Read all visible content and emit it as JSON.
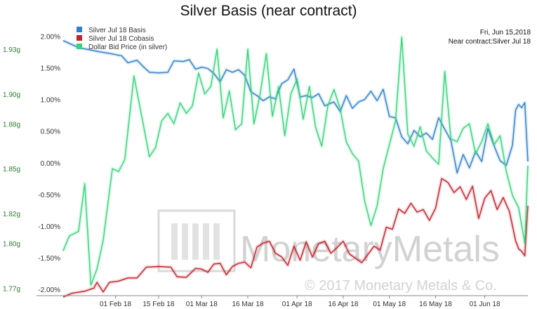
{
  "chart_data": {
    "type": "line",
    "title": "Silver Basis (near contract)",
    "info_lines": [
      "Fri, Jun 15,2018",
      "Near contract:Silver Jul 18"
    ],
    "watermark": {
      "brand": "MonetaryMetals",
      "copyright": "© 2017 Monetary Metals & Co."
    },
    "x_tick_labels": [
      "01 Feb 18",
      "15 Feb 18",
      "01 Mar 18",
      "16 Mar 18",
      "01 Apr 18",
      "16 Apr 18",
      "01 May 18",
      "16 May 18",
      "01 Jun 18"
    ],
    "x_range": [
      "2018-01-15",
      "2018-06-15"
    ],
    "y_left": {
      "tick_labels": [
        "1.77g",
        "1.80g",
        "1.82g",
        "1.85g",
        "1.88g",
        "1.90g",
        "1.93g"
      ],
      "range": [
        1.765,
        1.945
      ],
      "color": "#2e7d32"
    },
    "y_right": {
      "tick_labels": [
        "-2.00%",
        "-1.50%",
        "-1.00%",
        "-0.50%",
        "0.00%",
        "0.50%",
        "1.00%",
        "1.50%",
        "2.00%"
      ],
      "range": [
        -2.1,
        2.15
      ]
    },
    "grid": false,
    "legend_position": "top-left",
    "series": [
      {
        "name": "Silver Jul 18 Basis",
        "color": "#2f7fc9",
        "axis": "right",
        "points": [
          [
            "2018-01-15",
            1.93
          ],
          [
            "2018-01-20",
            1.82
          ],
          [
            "2018-01-26",
            1.76
          ],
          [
            "2018-01-31",
            1.72
          ],
          [
            "2018-02-03",
            1.69
          ],
          [
            "2018-02-05",
            1.58
          ],
          [
            "2018-02-08",
            1.62
          ],
          [
            "2018-02-10",
            1.52
          ],
          [
            "2018-02-12",
            1.43
          ],
          [
            "2018-02-15",
            1.42
          ],
          [
            "2018-02-18",
            1.43
          ],
          [
            "2018-02-20",
            1.61
          ],
          [
            "2018-02-23",
            1.6
          ],
          [
            "2018-02-25",
            1.63
          ],
          [
            "2018-02-27",
            1.48
          ],
          [
            "2018-03-01",
            1.51
          ],
          [
            "2018-03-03",
            1.49
          ],
          [
            "2018-03-05",
            1.41
          ],
          [
            "2018-03-07",
            1.28
          ],
          [
            "2018-03-09",
            1.47
          ],
          [
            "2018-03-11",
            1.43
          ],
          [
            "2018-03-13",
            1.47
          ],
          [
            "2018-03-15",
            1.38
          ],
          [
            "2018-03-17",
            1.12
          ],
          [
            "2018-03-19",
            1.06
          ],
          [
            "2018-03-21",
            0.98
          ],
          [
            "2018-03-23",
            1.04
          ],
          [
            "2018-03-25",
            1.01
          ],
          [
            "2018-03-27",
            1.25
          ],
          [
            "2018-03-29",
            1.31
          ],
          [
            "2018-03-31",
            1.48
          ],
          [
            "2018-04-02",
            1.04
          ],
          [
            "2018-04-04",
            1.06
          ],
          [
            "2018-04-06",
            1.03
          ],
          [
            "2018-04-08",
            1.09
          ],
          [
            "2018-04-10",
            0.9
          ],
          [
            "2018-04-13",
            0.96
          ],
          [
            "2018-04-15",
            0.81
          ],
          [
            "2018-04-17",
            1.06
          ],
          [
            "2018-04-19",
            0.86
          ],
          [
            "2018-04-21",
            0.96
          ],
          [
            "2018-04-23",
            1.0
          ],
          [
            "2018-04-25",
            1.13
          ],
          [
            "2018-04-27",
            0.98
          ],
          [
            "2018-04-29",
            1.16
          ],
          [
            "2018-05-01",
            0.73
          ],
          [
            "2018-05-03",
            0.71
          ],
          [
            "2018-05-05",
            0.41
          ],
          [
            "2018-05-07",
            0.3
          ],
          [
            "2018-05-09",
            0.51
          ],
          [
            "2018-05-11",
            0.41
          ],
          [
            "2018-05-13",
            0.47
          ],
          [
            "2018-05-15",
            0.37
          ],
          [
            "2018-05-17",
            0.71
          ],
          [
            "2018-05-19",
            0.53
          ],
          [
            "2018-05-21",
            0.35
          ],
          [
            "2018-05-23",
            -0.16
          ],
          [
            "2018-05-25",
            0.13
          ],
          [
            "2018-05-27",
            -0.08
          ],
          [
            "2018-05-29",
            0.18
          ],
          [
            "2018-05-31",
            0.02
          ],
          [
            "2018-06-02",
            0.54
          ],
          [
            "2018-06-04",
            0.27
          ],
          [
            "2018-06-06",
            0.03
          ],
          [
            "2018-06-08",
            -0.04
          ],
          [
            "2018-06-10",
            0.28
          ],
          [
            "2018-06-11",
            0.83
          ],
          [
            "2018-06-12",
            0.92
          ],
          [
            "2018-06-13",
            0.87
          ],
          [
            "2018-06-14",
            0.95
          ],
          [
            "2018-06-15",
            0.02
          ]
        ]
      },
      {
        "name": "Silver Jul 18 Cobasis",
        "color": "#c0232b",
        "axis": "right",
        "points": [
          [
            "2018-01-15",
            -2.12
          ],
          [
            "2018-01-18",
            -2.06
          ],
          [
            "2018-01-22",
            -2.03
          ],
          [
            "2018-01-25",
            -1.98
          ],
          [
            "2018-01-26",
            -1.89
          ],
          [
            "2018-01-28",
            -2.04
          ],
          [
            "2018-01-30",
            -1.89
          ],
          [
            "2018-02-02",
            -1.87
          ],
          [
            "2018-02-05",
            -1.82
          ],
          [
            "2018-02-08",
            -1.82
          ],
          [
            "2018-02-11",
            -1.65
          ],
          [
            "2018-02-15",
            -1.64
          ],
          [
            "2018-02-19",
            -1.65
          ],
          [
            "2018-02-21",
            -1.8
          ],
          [
            "2018-02-24",
            -1.81
          ],
          [
            "2018-02-27",
            -1.67
          ],
          [
            "2018-03-01",
            -1.68
          ],
          [
            "2018-03-03",
            -1.73
          ],
          [
            "2018-03-05",
            -1.6
          ],
          [
            "2018-03-07",
            -1.59
          ],
          [
            "2018-03-09",
            -1.77
          ],
          [
            "2018-03-11",
            -1.64
          ],
          [
            "2018-03-13",
            -1.59
          ],
          [
            "2018-03-15",
            -1.57
          ],
          [
            "2018-03-17",
            -1.66
          ],
          [
            "2018-03-19",
            -1.33
          ],
          [
            "2018-03-21",
            -1.27
          ],
          [
            "2018-03-23",
            -1.24
          ],
          [
            "2018-03-25",
            -1.43
          ],
          [
            "2018-03-27",
            -1.49
          ],
          [
            "2018-03-29",
            -1.62
          ],
          [
            "2018-03-31",
            -1.32
          ],
          [
            "2018-04-02",
            -1.54
          ],
          [
            "2018-04-04",
            -1.25
          ],
          [
            "2018-04-06",
            -1.49
          ],
          [
            "2018-04-08",
            -1.28
          ],
          [
            "2018-04-10",
            -1.24
          ],
          [
            "2018-04-12",
            -1.43
          ],
          [
            "2018-04-14",
            -1.34
          ],
          [
            "2018-04-16",
            -1.24
          ],
          [
            "2018-04-18",
            -1.44
          ],
          [
            "2018-04-20",
            -1.51
          ],
          [
            "2018-04-22",
            -1.58
          ],
          [
            "2018-04-24",
            -1.45
          ],
          [
            "2018-04-26",
            -1.32
          ],
          [
            "2018-04-28",
            -1.38
          ],
          [
            "2018-04-30",
            -1.02
          ],
          [
            "2018-05-02",
            -1.05
          ],
          [
            "2018-05-04",
            -0.73
          ],
          [
            "2018-05-06",
            -0.8
          ],
          [
            "2018-05-08",
            -0.64
          ],
          [
            "2018-05-10",
            -0.78
          ],
          [
            "2018-05-12",
            -0.74
          ],
          [
            "2018-05-14",
            -0.91
          ],
          [
            "2018-05-16",
            -0.72
          ],
          [
            "2018-05-18",
            -0.25
          ],
          [
            "2018-05-20",
            -0.31
          ],
          [
            "2018-05-22",
            -0.47
          ],
          [
            "2018-05-24",
            -0.38
          ],
          [
            "2018-05-26",
            -0.58
          ],
          [
            "2018-05-28",
            -0.37
          ],
          [
            "2018-05-30",
            -0.88
          ],
          [
            "2018-06-01",
            -0.56
          ],
          [
            "2018-06-03",
            -0.44
          ],
          [
            "2018-06-05",
            -0.74
          ],
          [
            "2018-06-07",
            -0.55
          ],
          [
            "2018-06-09",
            -0.77
          ],
          [
            "2018-06-11",
            -1.23
          ],
          [
            "2018-06-12",
            -1.36
          ],
          [
            "2018-06-13",
            -1.4
          ],
          [
            "2018-06-14",
            -1.47
          ],
          [
            "2018-06-15",
            -0.68
          ]
        ]
      },
      {
        "name": "Dollar Bid Price (in silver)",
        "color": "#35d47a",
        "axis": "left",
        "points": [
          [
            "2018-01-15",
            1.795
          ],
          [
            "2018-01-17",
            1.805
          ],
          [
            "2018-01-20",
            1.808
          ],
          [
            "2018-01-22",
            1.84
          ],
          [
            "2018-01-24",
            1.772
          ],
          [
            "2018-01-26",
            1.783
          ],
          [
            "2018-01-28",
            1.802
          ],
          [
            "2018-01-31",
            1.85
          ],
          [
            "2018-02-02",
            1.848
          ],
          [
            "2018-02-04",
            1.856
          ],
          [
            "2018-02-07",
            1.912
          ],
          [
            "2018-02-10",
            1.88
          ],
          [
            "2018-02-12",
            1.858
          ],
          [
            "2018-02-14",
            1.864
          ],
          [
            "2018-02-16",
            1.882
          ],
          [
            "2018-02-18",
            1.887
          ],
          [
            "2018-02-20",
            1.88
          ],
          [
            "2018-02-22",
            1.894
          ],
          [
            "2018-02-24",
            1.887
          ],
          [
            "2018-02-26",
            1.892
          ],
          [
            "2018-02-28",
            1.914
          ],
          [
            "2018-03-02",
            1.9
          ],
          [
            "2018-03-04",
            1.905
          ],
          [
            "2018-03-06",
            1.93
          ],
          [
            "2018-03-08",
            1.884
          ],
          [
            "2018-03-10",
            1.902
          ],
          [
            "2018-03-12",
            1.876
          ],
          [
            "2018-03-14",
            1.88
          ],
          [
            "2018-03-16",
            1.93
          ],
          [
            "2018-03-18",
            1.88
          ],
          [
            "2018-03-20",
            1.9
          ],
          [
            "2018-03-22",
            1.927
          ],
          [
            "2018-03-24",
            1.885
          ],
          [
            "2018-03-26",
            1.905
          ],
          [
            "2018-03-28",
            1.872
          ],
          [
            "2018-03-30",
            1.9
          ],
          [
            "2018-04-01",
            1.91
          ],
          [
            "2018-04-03",
            1.883
          ],
          [
            "2018-04-05",
            1.905
          ],
          [
            "2018-04-07",
            1.878
          ],
          [
            "2018-04-09",
            1.865
          ],
          [
            "2018-04-11",
            1.892
          ],
          [
            "2018-04-13",
            1.903
          ],
          [
            "2018-04-15",
            1.89
          ],
          [
            "2018-04-17",
            1.868
          ],
          [
            "2018-04-19",
            1.86
          ],
          [
            "2018-04-21",
            1.855
          ],
          [
            "2018-04-23",
            1.828
          ],
          [
            "2018-04-25",
            1.812
          ],
          [
            "2018-04-27",
            1.825
          ],
          [
            "2018-04-29",
            1.85
          ],
          [
            "2018-05-01",
            1.866
          ],
          [
            "2018-05-03",
            1.882
          ],
          [
            "2018-05-05",
            1.938
          ],
          [
            "2018-05-07",
            1.873
          ],
          [
            "2018-05-09",
            1.865
          ],
          [
            "2018-05-11",
            1.878
          ],
          [
            "2018-05-13",
            1.862
          ],
          [
            "2018-05-15",
            1.857
          ],
          [
            "2018-05-17",
            1.853
          ],
          [
            "2018-05-19",
            1.915
          ],
          [
            "2018-05-21",
            1.87
          ],
          [
            "2018-05-23",
            1.868
          ],
          [
            "2018-05-25",
            1.877
          ],
          [
            "2018-05-27",
            1.88
          ],
          [
            "2018-05-29",
            1.86
          ],
          [
            "2018-05-31",
            1.868
          ],
          [
            "2018-06-02",
            1.88
          ],
          [
            "2018-06-04",
            1.866
          ],
          [
            "2018-06-06",
            1.872
          ],
          [
            "2018-06-08",
            1.848
          ],
          [
            "2018-06-10",
            1.832
          ],
          [
            "2018-06-12",
            1.824
          ],
          [
            "2018-06-14",
            1.8
          ],
          [
            "2018-06-15",
            1.852
          ]
        ]
      }
    ]
  }
}
